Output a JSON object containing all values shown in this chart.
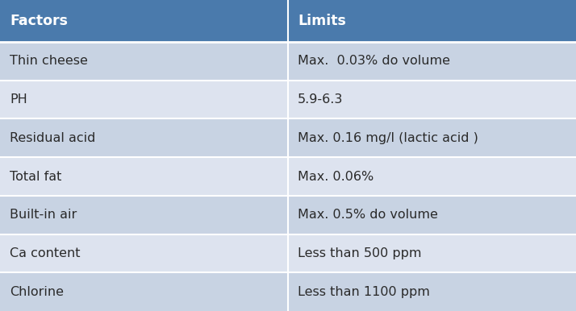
{
  "header": [
    "Factors",
    "Limits"
  ],
  "rows": [
    [
      "Thin cheese",
      "Max.  0.03% do volume"
    ],
    [
      "PH",
      "5.9-6.3"
    ],
    [
      "Residual acid",
      "Max. 0.16 mg/l (lactic acid )"
    ],
    [
      "Total fat",
      "Max. 0.06%"
    ],
    [
      "Built-in air",
      "Max. 0.5% do volume"
    ],
    [
      "Ca content",
      "Less than 500 ppm"
    ],
    [
      "Chlorine",
      "Less than 1100 ppm"
    ]
  ],
  "header_bg": "#4a7aac",
  "header_text_color": "#ffffff",
  "row_bg_odd": "#c8d3e3",
  "row_bg_even": "#dde3ef",
  "row_text_color": "#2a2a2a",
  "col_split": 0.5,
  "header_fontsize": 12.5,
  "row_fontsize": 11.5,
  "fig_bg": "#ffffff",
  "fig_width": 7.14,
  "fig_height": 3.86,
  "dpi": 100
}
